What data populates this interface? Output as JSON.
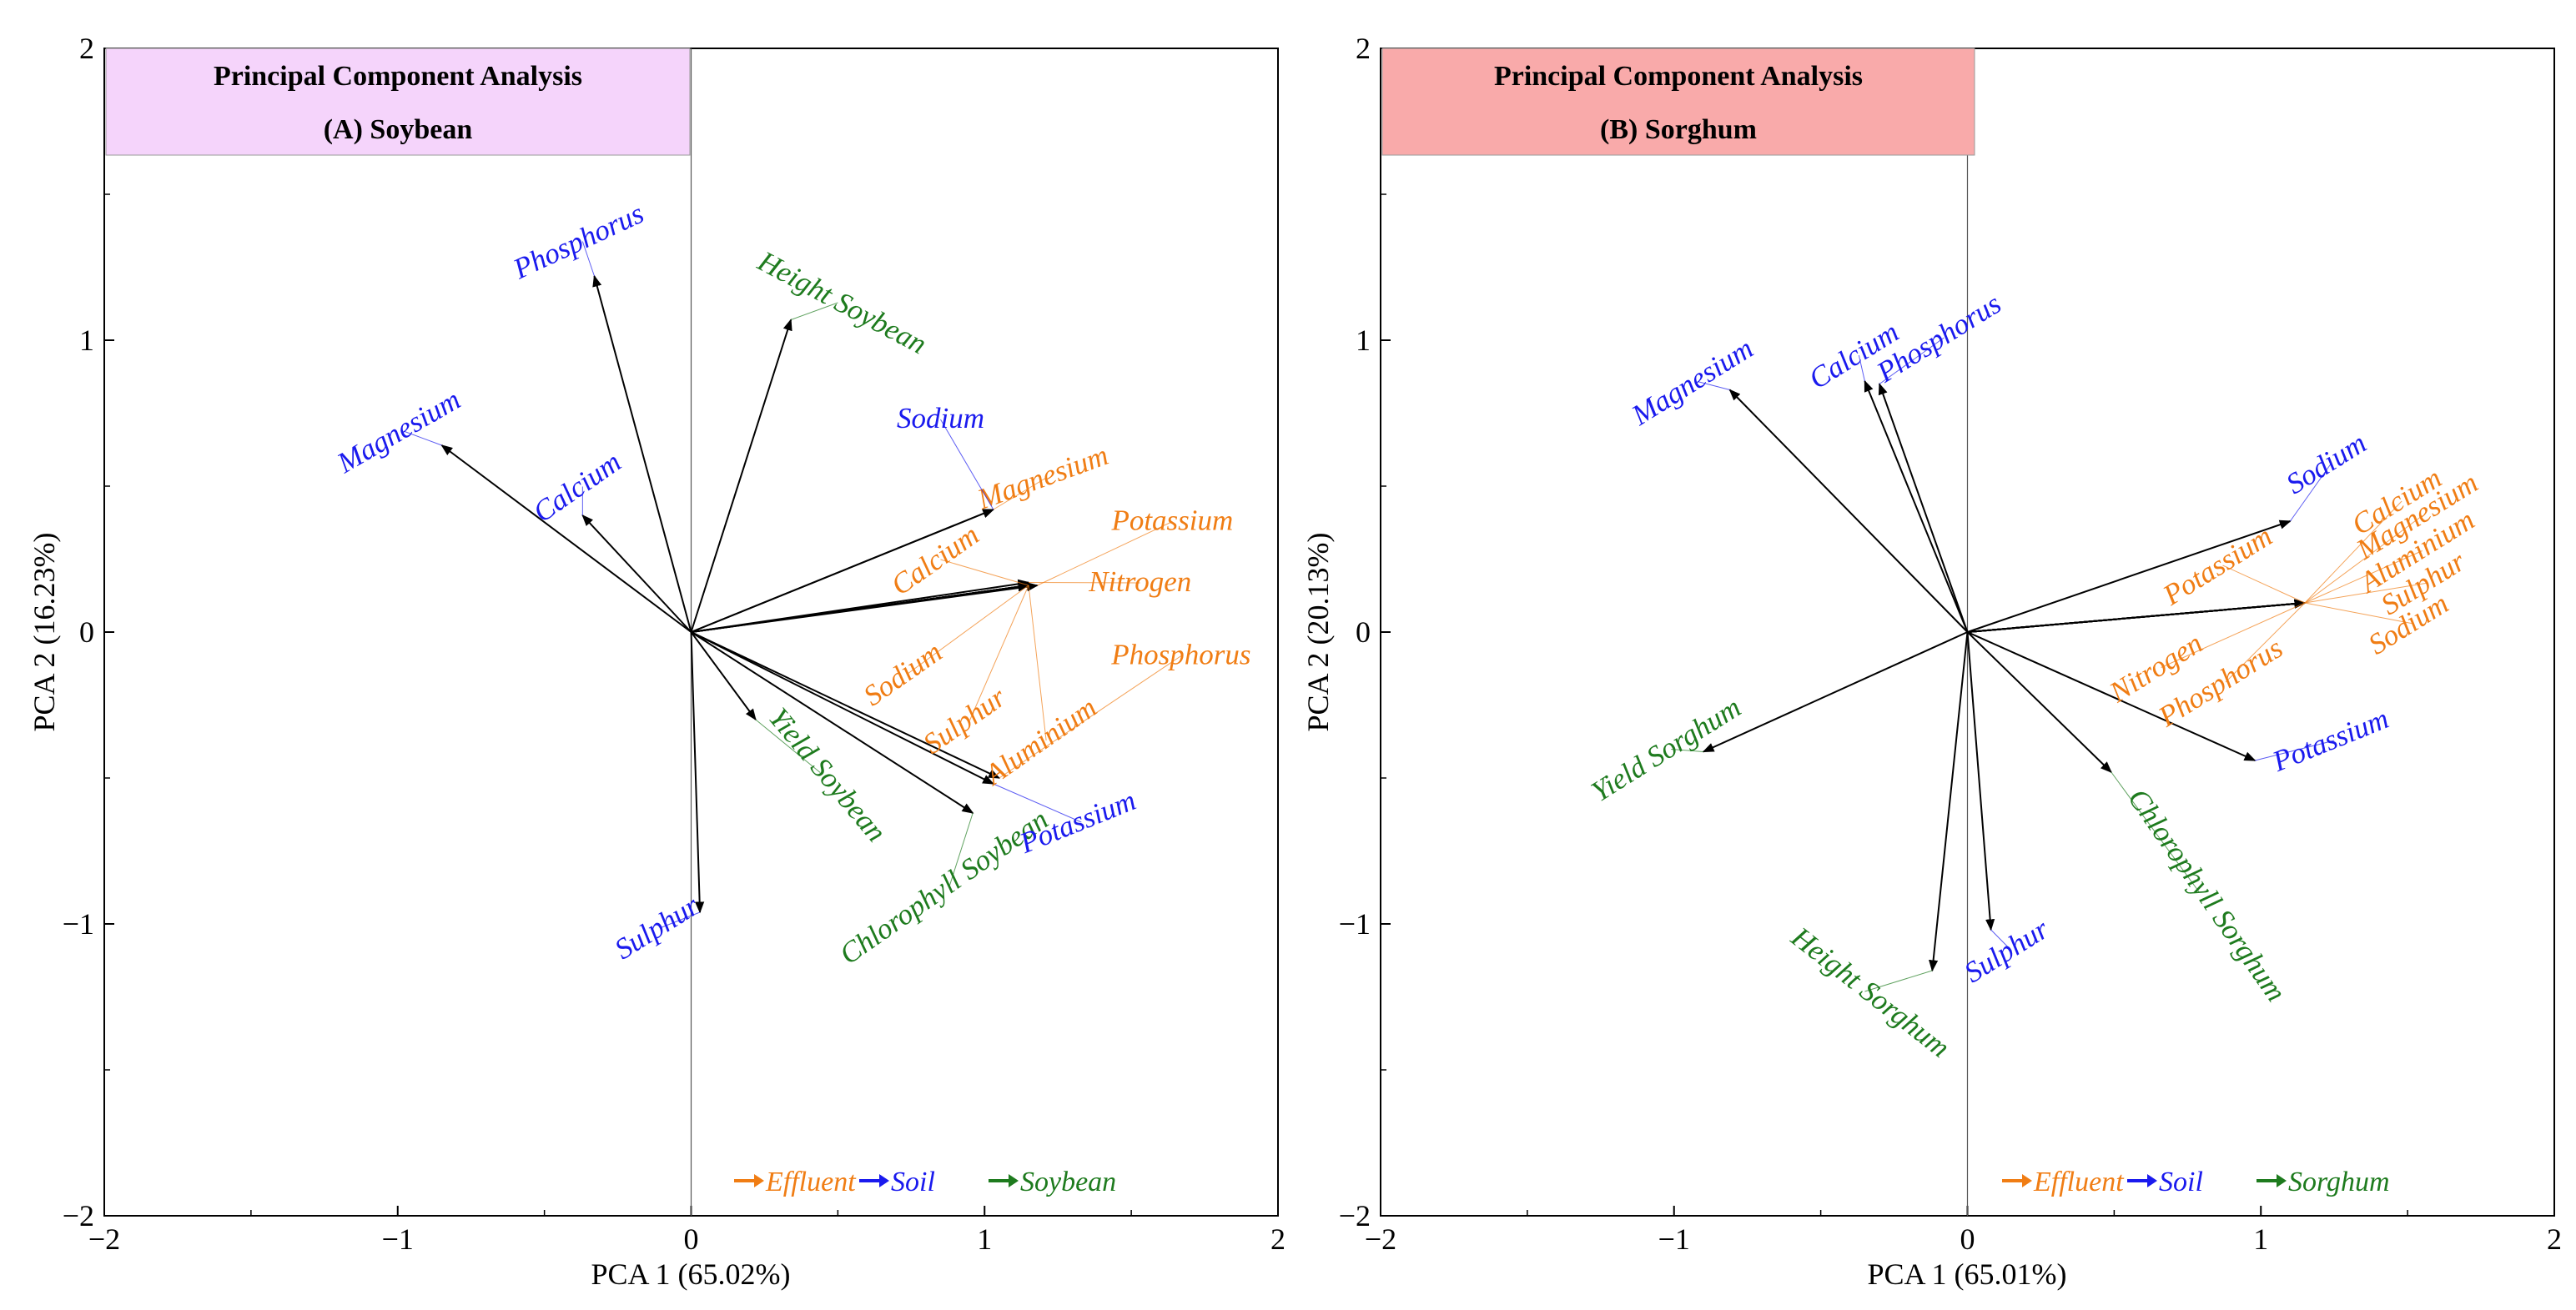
{
  "colors": {
    "effluent": "#f07d14",
    "soil": "#1a1aee",
    "crop": "#1e7b1e",
    "axis": "#000000",
    "panel_a_title_bg": "#f5d4fb",
    "panel_b_title_bg": "#f9aaaa"
  },
  "chart_data": [
    {
      "type": "scatter",
      "id": "A",
      "title": "Principal Component Analysis",
      "subtitle": "(A) Soybean",
      "title_bg_color_key": "panel_a_title_bg",
      "xlabel": "PCA 1 (65.02%)",
      "ylabel": "PCA 2 (16.23%)",
      "xlim": [
        -2,
        2
      ],
      "ylim": [
        -2,
        2
      ],
      "xticks": [
        -2,
        -1,
        0,
        1,
        2
      ],
      "yticks": [
        -2,
        -1,
        0,
        1,
        2
      ],
      "xtick_labels": [
        "−2",
        "−1",
        "0",
        "1",
        "2"
      ],
      "ytick_labels": [
        "−2",
        "−1",
        "0",
        "1",
        "2"
      ],
      "legend": {
        "position": "bottom-right",
        "items": [
          {
            "label": "Effluent",
            "group": "effluent"
          },
          {
            "label": "Soil",
            "group": "soil"
          },
          {
            "label": "Soybean",
            "group": "crop"
          }
        ]
      },
      "vectors": [
        {
          "label": "Phosphorus",
          "group": "soil",
          "x": -0.33,
          "y": 1.22,
          "lx": -0.37,
          "ly": 1.31,
          "angle": -25
        },
        {
          "label": "Magnesium",
          "group": "soil",
          "x": -0.85,
          "y": 0.64,
          "lx": -0.98,
          "ly": 0.66,
          "angle": -30
        },
        {
          "label": "Calcium",
          "group": "soil",
          "x": -0.37,
          "y": 0.4,
          "lx": -0.37,
          "ly": 0.47,
          "angle": -35
        },
        {
          "label": "Height Soybean",
          "group": "crop",
          "x": 0.34,
          "y": 1.07,
          "lx": 0.5,
          "ly": 1.1,
          "angle": 28
        },
        {
          "label": "Sulphur",
          "group": "soil",
          "x": 0.03,
          "y": -0.96,
          "lx": -0.1,
          "ly": -1.04,
          "angle": -32
        },
        {
          "label": "Yield Soybean",
          "group": "crop",
          "x": 0.22,
          "y": -0.3,
          "lx": 0.44,
          "ly": -0.51,
          "angle": 50
        },
        {
          "label": "Magnesium",
          "group": "effluent",
          "x": 1.03,
          "y": 0.42,
          "lx": 1.21,
          "ly": 0.5,
          "angle": -20
        },
        {
          "label": "Potassium",
          "group": "effluent",
          "x": 1.18,
          "y": 0.16,
          "lx": 1.64,
          "ly": 0.35,
          "angle": 0
        },
        {
          "label": "Nitrogen",
          "group": "effluent",
          "x": 1.15,
          "y": 0.17,
          "lx": 1.53,
          "ly": 0.14,
          "angle": 0
        },
        {
          "label": "Phosphorus",
          "group": "effluent",
          "x": 1.05,
          "y": -0.5,
          "lx": 1.67,
          "ly": -0.11,
          "angle": 0
        },
        {
          "label": "Chlorophyll Soybean",
          "group": "crop",
          "x": 0.96,
          "y": -0.62,
          "lx": 0.88,
          "ly": -0.9,
          "angle": -35
        },
        {
          "label": "Potassium",
          "group": "soil",
          "x": 1.03,
          "y": -0.52,
          "lx": 1.33,
          "ly": -0.68,
          "angle": -22
        },
        {
          "label": "Sodium",
          "group": "soil",
          "x": 1.03,
          "y": 0.42,
          "lx": 0.85,
          "ly": 0.7,
          "angle": 0
        },
        {
          "label": "Calcium",
          "group": "effluent",
          "x": 1.15,
          "y": 0.16,
          "lx": 0.85,
          "ly": 0.22,
          "angle": -35
        },
        {
          "label": "Sodium",
          "group": "effluent",
          "x": 1.15,
          "y": 0.16,
          "lx": 0.74,
          "ly": -0.17,
          "angle": -35
        },
        {
          "label": "Sulphur",
          "group": "effluent",
          "x": 1.15,
          "y": 0.16,
          "lx": 0.95,
          "ly": -0.33,
          "angle": -35
        },
        {
          "label": "Aluminium",
          "group": "effluent",
          "x": 1.15,
          "y": 0.16,
          "lx": 1.21,
          "ly": -0.4,
          "angle": -35
        }
      ]
    },
    {
      "type": "scatter",
      "id": "B",
      "title": "Principal Component Analysis",
      "subtitle": "(B) Sorghum",
      "title_bg_color_key": "panel_b_title_bg",
      "xlabel": "PCA 1 (65.01%)",
      "ylabel": "PCA 2 (20.13%)",
      "xlim": [
        -2,
        2
      ],
      "ylim": [
        -2,
        2
      ],
      "xticks": [
        -2,
        -1,
        0,
        1,
        2
      ],
      "yticks": [
        -2,
        -1,
        0,
        1,
        2
      ],
      "xtick_labels": [
        "−2",
        "−1",
        "0",
        "1",
        "2"
      ],
      "ytick_labels": [
        "−2",
        "−1",
        "0",
        "1",
        "2"
      ],
      "legend": {
        "position": "bottom-right",
        "items": [
          {
            "label": "Effluent",
            "group": "effluent"
          },
          {
            "label": "Soil",
            "group": "soil"
          },
          {
            "label": "Sorghum",
            "group": "crop"
          }
        ]
      },
      "vectors": [
        {
          "label": "Magnesium",
          "group": "soil",
          "x": -0.81,
          "y": 0.83,
          "lx": -0.92,
          "ly": 0.83,
          "angle": -32
        },
        {
          "label": "Calcium",
          "group": "soil",
          "x": -0.35,
          "y": 0.86,
          "lx": -0.37,
          "ly": 0.92,
          "angle": -32
        },
        {
          "label": "Phosphorus",
          "group": "soil",
          "x": -0.3,
          "y": 0.85,
          "lx": -0.08,
          "ly": 0.98,
          "angle": -32
        },
        {
          "label": "Sodium",
          "group": "soil",
          "x": 1.1,
          "y": 0.38,
          "lx": 1.24,
          "ly": 0.55,
          "angle": -32
        },
        {
          "label": "Potassium",
          "group": "soil",
          "x": 0.98,
          "y": -0.44,
          "lx": 1.25,
          "ly": -0.4,
          "angle": -22
        },
        {
          "label": "Sulphur",
          "group": "soil",
          "x": 0.08,
          "y": -1.02,
          "lx": 0.15,
          "ly": -1.12,
          "angle": -32
        },
        {
          "label": "Yield Sorghum",
          "group": "crop",
          "x": -0.9,
          "y": -0.41,
          "lx": -1.01,
          "ly": -0.43,
          "angle": -32
        },
        {
          "label": "Height Sorghum",
          "group": "crop",
          "x": -0.12,
          "y": -1.16,
          "lx": -0.35,
          "ly": -1.26,
          "angle": 38
        },
        {
          "label": "Chlorophyll Sorghum",
          "group": "crop",
          "x": 0.49,
          "y": -0.48,
          "lx": 0.79,
          "ly": -0.92,
          "angle": 55
        },
        {
          "label": "Calcium",
          "group": "effluent",
          "x": 1.15,
          "y": 0.1,
          "lx": 1.48,
          "ly": 0.42,
          "angle": -32
        },
        {
          "label": "Magnesium",
          "group": "effluent",
          "x": 1.15,
          "y": 0.1,
          "lx": 1.55,
          "ly": 0.37,
          "angle": -32
        },
        {
          "label": "Aluminium",
          "group": "effluent",
          "x": 1.15,
          "y": 0.1,
          "lx": 1.55,
          "ly": 0.25,
          "angle": -32
        },
        {
          "label": "Sulphur",
          "group": "effluent",
          "x": 1.15,
          "y": 0.1,
          "lx": 1.57,
          "ly": 0.14,
          "angle": -32
        },
        {
          "label": "Sodium",
          "group": "effluent",
          "x": 1.15,
          "y": 0.1,
          "lx": 1.52,
          "ly": 0.0,
          "angle": -32
        },
        {
          "label": "Potassium",
          "group": "effluent",
          "x": 1.15,
          "y": 0.1,
          "lx": 0.87,
          "ly": 0.2,
          "angle": -32
        },
        {
          "label": "Nitrogen",
          "group": "effluent",
          "x": 1.15,
          "y": 0.1,
          "lx": 0.66,
          "ly": -0.15,
          "angle": -32
        },
        {
          "label": "Phosphorus",
          "group": "effluent",
          "x": 1.15,
          "y": 0.1,
          "lx": 0.88,
          "ly": -0.2,
          "angle": -32
        }
      ]
    }
  ]
}
